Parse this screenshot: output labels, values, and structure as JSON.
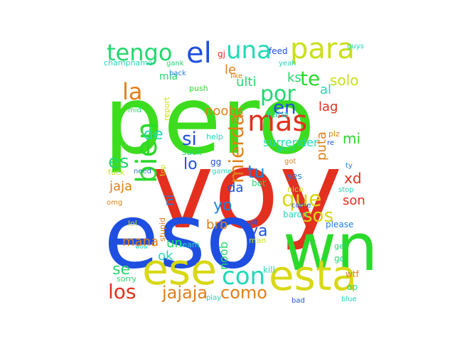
{
  "words": [
    {
      "text": "pero",
      "color": "#3ddc1e"
    },
    {
      "text": "voy",
      "color": "#e3301f"
    },
    {
      "text": "eso",
      "color": "#1f4fe0"
    },
    {
      "text": "wn",
      "color": "#2bd92b"
    },
    {
      "text": "ese",
      "color": "#d8d816"
    },
    {
      "text": "esta",
      "color": "#d8d816"
    },
    {
      "text": "tengo",
      "color": "#22d86e"
    },
    {
      "text": "el",
      "color": "#1f4fe0"
    },
    {
      "text": "una",
      "color": "#22d8b8"
    },
    {
      "text": "para",
      "color": "#c9e01a"
    },
    {
      "text": "te",
      "color": "#2bd92b"
    },
    {
      "text": "la",
      "color": "#e07f1a"
    },
    {
      "text": "por",
      "color": "#22d86e"
    },
    {
      "text": "en",
      "color": "#1f4fe0"
    },
    {
      "text": "mas",
      "color": "#e3301f"
    },
    {
      "text": "bien",
      "color": "#2bd92b"
    },
    {
      "text": "de",
      "color": "#22d8b8"
    },
    {
      "text": "si",
      "color": "#1f4fe0"
    },
    {
      "text": "mierda",
      "color": "#e07f1a"
    },
    {
      "text": "es",
      "color": "#22d86e"
    },
    {
      "text": "tu",
      "color": "#1f7fe0"
    },
    {
      "text": "que",
      "color": "#d8d816"
    },
    {
      "text": "sos",
      "color": "#d8d816"
    },
    {
      "text": "con",
      "color": "#22d8b8"
    },
    {
      "text": "los",
      "color": "#e3301f"
    },
    {
      "text": "como",
      "color": "#e07f1a"
    },
    {
      "text": "jajaja",
      "color": "#e07f1a"
    },
    {
      "text": "solo",
      "color": "#c9e01a"
    },
    {
      "text": "ks",
      "color": "#22d86e"
    },
    {
      "text": "al",
      "color": "#22d8b8"
    },
    {
      "text": "lag",
      "color": "#e3301f"
    },
    {
      "text": "le",
      "color": "#e07f1a"
    },
    {
      "text": "ulti",
      "color": "#22d86e"
    },
    {
      "text": "noobs",
      "color": "#e07f1a"
    },
    {
      "text": "lo",
      "color": "#1f4fe0"
    },
    {
      "text": "jaja",
      "color": "#e07f1a"
    },
    {
      "text": "ni",
      "color": "#1f7fe0"
    },
    {
      "text": "da",
      "color": "#1f4fe0"
    },
    {
      "text": "yo",
      "color": "#1f7fe0"
    },
    {
      "text": "un",
      "color": "#22d86e"
    },
    {
      "text": "mana",
      "color": "#e07f1a"
    },
    {
      "text": "ok",
      "color": "#22d8b8"
    },
    {
      "text": "se",
      "color": "#22d86e"
    },
    {
      "text": "noob",
      "color": "#22d86e"
    },
    {
      "text": "ya",
      "color": "#1f4fe0"
    },
    {
      "text": "brb",
      "color": "#e07f1a"
    },
    {
      "text": "xd",
      "color": "#e3301f"
    },
    {
      "text": "son",
      "color": "#e3301f"
    },
    {
      "text": "mi",
      "color": "#2bd92b"
    },
    {
      "text": "puta",
      "color": "#e07f1a"
    },
    {
      "text": "surrender",
      "color": "#22d8b8"
    },
    {
      "text": "haha",
      "color": "#22d8b8"
    },
    {
      "text": "mia",
      "color": "#22d86e"
    },
    {
      "text": "gj",
      "color": "#e3301f"
    },
    {
      "text": "feed",
      "color": "#1f4fe0"
    },
    {
      "text": "guys",
      "color": "#22d8b8"
    },
    {
      "text": "champname",
      "color": "#22d8b8"
    },
    {
      "text": "gank",
      "color": "#22d86e"
    },
    {
      "text": "back",
      "color": "#1f7fe0"
    },
    {
      "text": "yeah",
      "color": "#22d8b8"
    },
    {
      "text": "like",
      "color": "#e07f1a"
    },
    {
      "text": "push",
      "color": "#2bd92b"
    },
    {
      "text": "mid",
      "color": "#22d86e"
    },
    {
      "text": "report",
      "color": "#c9e01a"
    },
    {
      "text": "help",
      "color": "#22d8b8"
    },
    {
      "text": "plz",
      "color": "#e07f1a"
    },
    {
      "text": "good",
      "color": "#22d8b8"
    },
    {
      "text": "re",
      "color": "#1f4fe0"
    },
    {
      "text": "ty",
      "color": "#1f7fe0"
    },
    {
      "text": "suck",
      "color": "#22d86e"
    },
    {
      "text": "gg",
      "color": "#1f4fe0"
    },
    {
      "text": "got",
      "color": "#e07f1a"
    },
    {
      "text": "fuck",
      "color": "#c9e01a"
    },
    {
      "text": "need",
      "color": "#1f7fe0"
    },
    {
      "text": "top",
      "color": "#c9e01a"
    },
    {
      "text": "game",
      "color": "#22d8b8"
    },
    {
      "text": "bot",
      "color": "#22d86e"
    },
    {
      "text": "yes",
      "color": "#1f7fe0"
    },
    {
      "text": "stop",
      "color": "#22d8b8"
    },
    {
      "text": "omg",
      "color": "#e07f1a"
    },
    {
      "text": "nice",
      "color": "#c9e01a"
    },
    {
      "text": "come",
      "color": "#1f4fe0"
    },
    {
      "text": "baron",
      "color": "#22d8b8"
    },
    {
      "text": "lol",
      "color": "#c9e01a"
    },
    {
      "text": "stupid",
      "color": "#e07f1a"
    },
    {
      "text": "please",
      "color": "#1f7fe0"
    },
    {
      "text": "wow",
      "color": "#22d8b8"
    },
    {
      "text": "team",
      "color": "#22d8b8"
    },
    {
      "text": "ult",
      "color": "#1f4fe0"
    },
    {
      "text": "man",
      "color": "#c9e01a"
    },
    {
      "text": "get",
      "color": "#22d86e"
    },
    {
      "text": "go",
      "color": "#22d86e"
    },
    {
      "text": "sorry",
      "color": "#22d86e"
    },
    {
      "text": "kill",
      "color": "#22d8b8"
    },
    {
      "text": "wtf",
      "color": "#e07f1a"
    },
    {
      "text": "op",
      "color": "#22d86e"
    },
    {
      "text": "play",
      "color": "#22d8b8"
    },
    {
      "text": "bad",
      "color": "#1f4fe0"
    },
    {
      "text": "blue",
      "color": "#22d8b8"
    }
  ]
}
